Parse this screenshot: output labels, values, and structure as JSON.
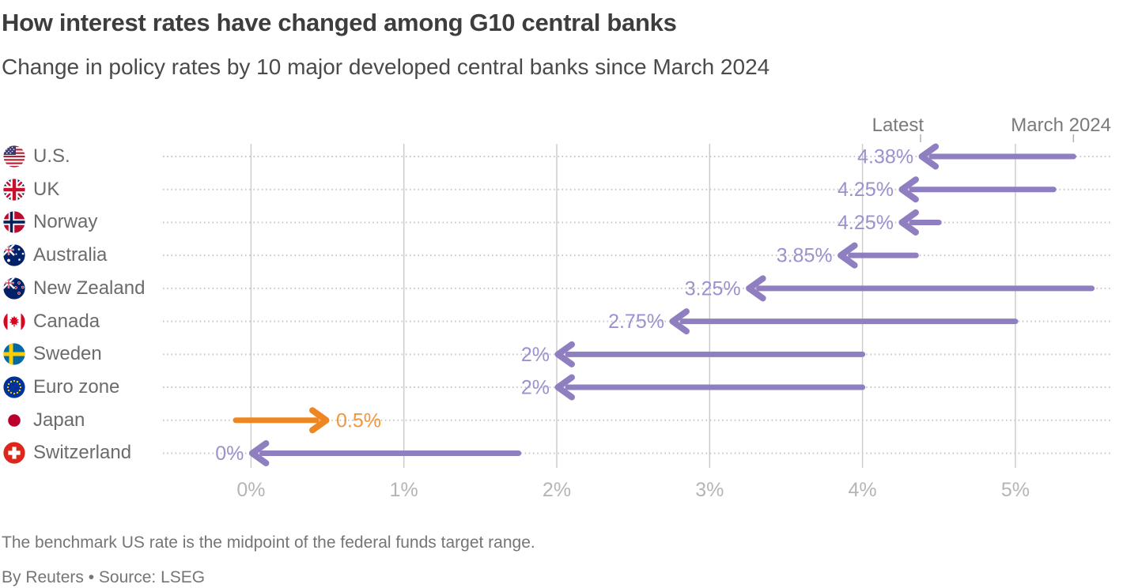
{
  "header": {
    "title": "How interest rates have changed among G10 central banks",
    "subtitle": "Change in policy rates by 10 major developed central banks since March 2024"
  },
  "chart_data": {
    "type": "arrow",
    "description": "Arrow chart: each row shows a central bank policy rate moving from its March 2024 level (arrow tail) to its latest level (arrow tip)",
    "column_labels": {
      "latest": "Latest",
      "march": "March 2024"
    },
    "x_axis": {
      "tick_values": [
        0,
        1,
        2,
        3,
        4,
        5
      ],
      "tick_labels": [
        "0%",
        "1%",
        "2%",
        "3%",
        "4%",
        "5%"
      ],
      "xlim": [
        -0.58,
        5.62
      ],
      "gridlines": true
    },
    "rows": [
      {
        "country": "U.S.",
        "flag": "us",
        "march_2024": 5.38,
        "latest": 4.38,
        "latest_label": "4.38%",
        "direction": "cut"
      },
      {
        "country": "UK",
        "flag": "uk",
        "march_2024": 5.25,
        "latest": 4.25,
        "latest_label": "4.25%",
        "direction": "cut"
      },
      {
        "country": "Norway",
        "flag": "norway",
        "march_2024": 4.5,
        "latest": 4.25,
        "latest_label": "4.25%",
        "direction": "cut"
      },
      {
        "country": "Australia",
        "flag": "australia",
        "march_2024": 4.35,
        "latest": 3.85,
        "latest_label": "3.85%",
        "direction": "cut"
      },
      {
        "country": "New Zealand",
        "flag": "new-zealand",
        "march_2024": 5.5,
        "latest": 3.25,
        "latest_label": "3.25%",
        "direction": "cut"
      },
      {
        "country": "Canada",
        "flag": "canada",
        "march_2024": 5.0,
        "latest": 2.75,
        "latest_label": "2.75%",
        "direction": "cut"
      },
      {
        "country": "Sweden",
        "flag": "sweden",
        "march_2024": 4.0,
        "latest": 2.0,
        "latest_label": "2%",
        "direction": "cut"
      },
      {
        "country": "Euro zone",
        "flag": "euro-zone",
        "march_2024": 4.0,
        "latest": 2.0,
        "latest_label": "2%",
        "direction": "cut"
      },
      {
        "country": "Japan",
        "flag": "japan",
        "march_2024": -0.1,
        "latest": 0.5,
        "latest_label": "0.5%",
        "direction": "hike"
      },
      {
        "country": "Switzerland",
        "flag": "switzerland",
        "march_2024": 1.75,
        "latest": 0.0,
        "latest_label": "0%",
        "direction": "cut"
      }
    ],
    "colors": {
      "cut_arrow": "#8f7fc0",
      "cut_label": "#9d90ce",
      "hike_arrow": "#ee8621",
      "hike_label": "#f0973d",
      "gridline": "#cdcdcd",
      "dotted_line": "#c7c7c7",
      "axis_label": "#b5b5b5",
      "column_header": "#7a7a7a"
    },
    "legend_position": "top-right-column-headers"
  },
  "footer": {
    "note": "The benchmark US rate is the midpoint of the federal funds target range.",
    "credit": "By Reuters • Source: LSEG"
  }
}
